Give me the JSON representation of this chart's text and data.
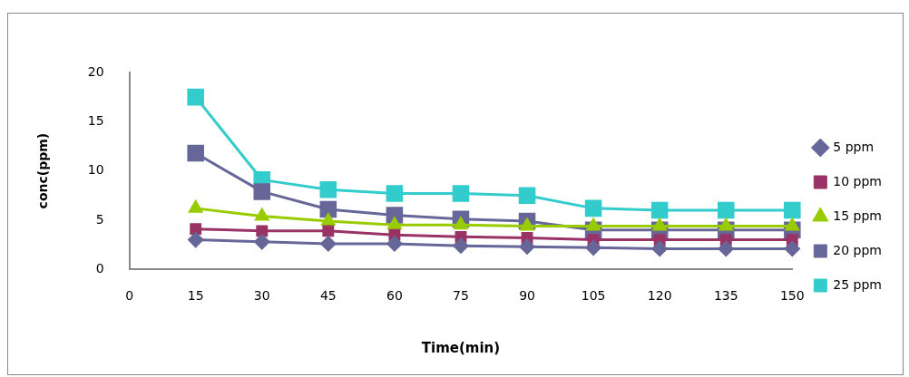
{
  "chart_data": {
    "type": "line",
    "xlabel": "Time(min)",
    "ylabel": "conc(ppm)",
    "categories": [
      "0",
      "15",
      "30",
      "45",
      "60",
      "75",
      "90",
      "105",
      "120",
      "135",
      "150"
    ],
    "ylim": [
      0,
      20
    ],
    "yticks": [
      0,
      5,
      10,
      15,
      20
    ],
    "grid": false,
    "legend": "right",
    "series": [
      {
        "name": "5 ppm",
        "color": "#666699",
        "marker": "diamond",
        "values": [
          null,
          3.0,
          2.8,
          2.6,
          2.6,
          2.4,
          2.3,
          2.2,
          2.1,
          2.1,
          2.1
        ]
      },
      {
        "name": "10 ppm",
        "color": "#993366",
        "marker": "square",
        "values": [
          null,
          4.1,
          3.9,
          3.9,
          3.5,
          3.3,
          3.2,
          3.0,
          3.0,
          3.0,
          3.0
        ]
      },
      {
        "name": "15 ppm",
        "color": "#99cc00",
        "marker": "triangle",
        "values": [
          null,
          6.2,
          5.4,
          4.9,
          4.5,
          4.5,
          4.4,
          4.4,
          4.4,
          4.4,
          4.4
        ]
      },
      {
        "name": "20 ppm",
        "color": "#666699",
        "marker": "square",
        "values": [
          null,
          11.8,
          7.9,
          6.1,
          5.5,
          5.1,
          4.9,
          4.0,
          4.0,
          4.0,
          4.0
        ]
      },
      {
        "name": "25 ppm",
        "color": "#33cccc",
        "marker": "square",
        "values": [
          null,
          17.5,
          9.1,
          8.1,
          7.7,
          7.7,
          7.5,
          6.2,
          6.0,
          6.0,
          6.0
        ]
      }
    ]
  }
}
